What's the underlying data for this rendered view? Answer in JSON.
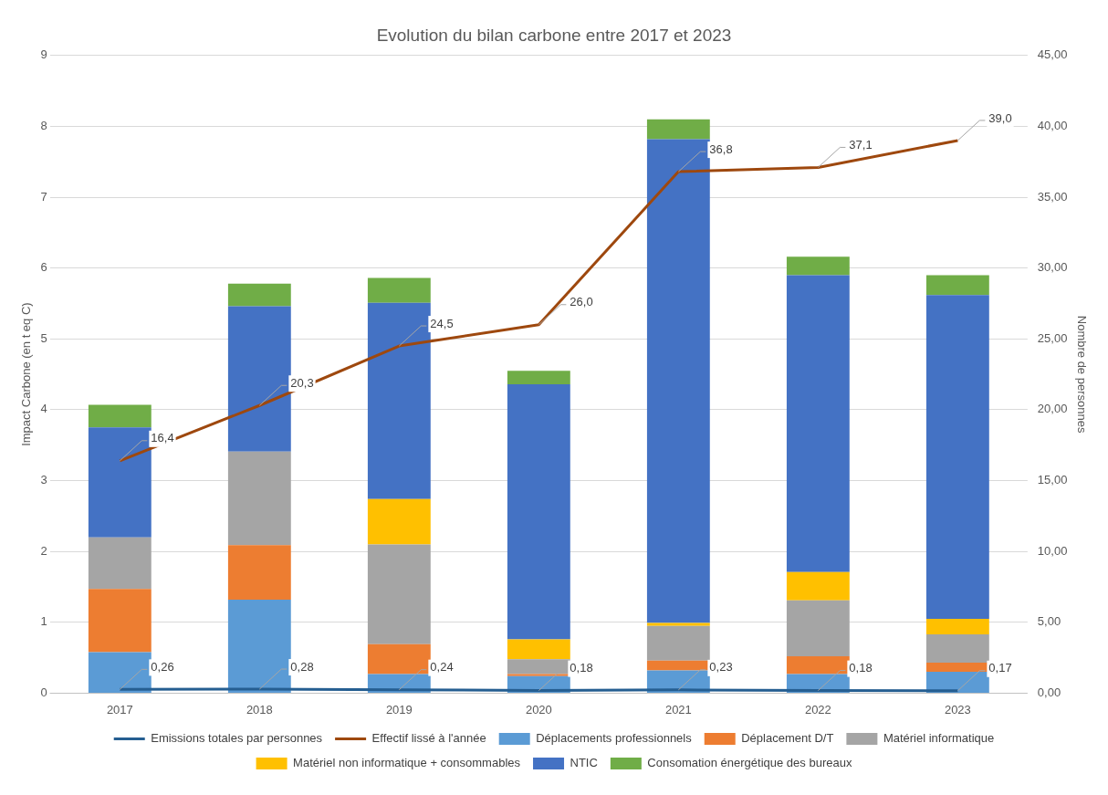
{
  "chart_data": {
    "type": "bar",
    "stacked": true,
    "title": "Evolution du bilan carbone entre 2017 et 2023",
    "ylabel": "Impact Carbone (en t eq C)",
    "y2label": "Nombre de personnes",
    "categories": [
      "2017",
      "2018",
      "2019",
      "2020",
      "2021",
      "2022",
      "2023"
    ],
    "ylim": [
      0,
      9
    ],
    "yticks": [
      0,
      1,
      2,
      3,
      4,
      5,
      6,
      7,
      8,
      9
    ],
    "y2lim": [
      0,
      45
    ],
    "y2ticks": [
      {
        "value": 0,
        "label": "0,00"
      },
      {
        "value": 5,
        "label": "5,00"
      },
      {
        "value": 10,
        "label": "10,00"
      },
      {
        "value": 15,
        "label": "15,00"
      },
      {
        "value": 20,
        "label": "20,00"
      },
      {
        "value": 25,
        "label": "25,00"
      },
      {
        "value": 30,
        "label": "30,00"
      },
      {
        "value": 35,
        "label": "35,00"
      },
      {
        "value": 40,
        "label": "40,00"
      },
      {
        "value": 45,
        "label": "45,00"
      }
    ],
    "grid": "y",
    "legend": "bottom",
    "marker": "none",
    "series": [
      {
        "name": "Déplacements professionnels",
        "color": "#5b9bd5",
        "values": [
          0.58,
          1.32,
          0.27,
          0.24,
          0.32,
          0.27,
          0.3
        ]
      },
      {
        "name": "Déplacement D/T",
        "color": "#ed7d31",
        "values": [
          0.89,
          0.77,
          0.42,
          0.03,
          0.14,
          0.25,
          0.13
        ]
      },
      {
        "name": "Matériel informatique",
        "color": "#a5a5a5",
        "values": [
          0.73,
          1.32,
          1.41,
          0.21,
          0.49,
          0.79,
          0.4
        ]
      },
      {
        "name": "Matériel non informatique + consommables",
        "color": "#ffc000",
        "values": [
          0,
          0,
          0.64,
          0.28,
          0.04,
          0.4,
          0.22
        ]
      },
      {
        "name": "NTIC",
        "color": "#4472c4",
        "values": [
          1.55,
          2.05,
          2.77,
          3.6,
          6.83,
          4.19,
          4.57
        ]
      },
      {
        "name": "Consomation énergétique des bureaux",
        "color": "#70ad47",
        "values": [
          0.32,
          0.32,
          0.35,
          0.19,
          0.28,
          0.26,
          0.28
        ]
      },
      {
        "name": "Emissions totales par personnes",
        "type": "line",
        "axis": "y2",
        "color": "#255e91",
        "values": [
          0.26,
          0.28,
          0.24,
          0.18,
          0.23,
          0.18,
          0.17
        ],
        "value_labels": [
          "0,26",
          "0,28",
          "0,24",
          "0,18",
          "0,23",
          "0,18",
          "0,17"
        ]
      },
      {
        "name": "Effectif lissé à l'année",
        "type": "line",
        "axis": "y2",
        "color": "#9e480e",
        "values": [
          16.4,
          20.3,
          24.5,
          26.0,
          36.8,
          37.1,
          39.0
        ],
        "value_labels": [
          "16,4",
          "20,3",
          "24,5",
          "26,0",
          "36,8",
          "37,1",
          "39,0"
        ]
      }
    ]
  }
}
